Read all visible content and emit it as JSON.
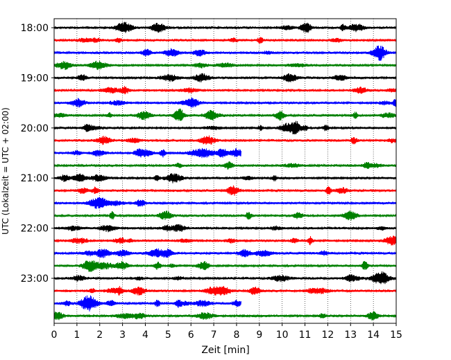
{
  "chart_data": {
    "type": "line",
    "title": "",
    "xlabel": "Zeit  [min]",
    "ylabel": "UTC (Lokalzeit = UTC + 02:00)",
    "xlim": [
      0,
      15
    ],
    "x_ticks": [
      "0",
      "1",
      "2",
      "3",
      "4",
      "5",
      "6",
      "7",
      "8",
      "9",
      "10",
      "11",
      "12",
      "13",
      "14",
      "15"
    ],
    "y_ticks": [
      "18:00",
      "19:00",
      "20:00",
      "21:00",
      "22:00",
      "23:00"
    ],
    "grid": "vertical dotted",
    "trace_interval_minutes": 15,
    "trace_colors": [
      "#000000",
      "#ff0000",
      "#0000ff",
      "#008000"
    ],
    "traces": [
      {
        "start": "18:00",
        "end_min": 15
      },
      {
        "start": "18:15",
        "end_min": 15
      },
      {
        "start": "18:30",
        "end_min": 15
      },
      {
        "start": "18:45",
        "end_min": 15
      },
      {
        "start": "19:00",
        "end_min": 15
      },
      {
        "start": "19:15",
        "end_min": 15
      },
      {
        "start": "19:30",
        "end_min": 15
      },
      {
        "start": "19:45",
        "end_min": 15
      },
      {
        "start": "20:00",
        "end_min": 15
      },
      {
        "start": "20:15",
        "end_min": 15
      },
      {
        "start": "20:30",
        "end_min": 8.2
      },
      {
        "start": "20:45",
        "end_min": 15
      },
      {
        "start": "21:00",
        "end_min": 15
      },
      {
        "start": "21:15",
        "end_min": 15
      },
      {
        "start": "21:30",
        "end_min": 15
      },
      {
        "start": "21:45",
        "end_min": 15
      },
      {
        "start": "22:00",
        "end_min": 15
      },
      {
        "start": "22:15",
        "end_min": 15
      },
      {
        "start": "22:30",
        "end_min": 15
      },
      {
        "start": "22:45",
        "end_min": 15
      },
      {
        "start": "23:00",
        "end_min": 15
      },
      {
        "start": "23:15",
        "end_min": 15
      },
      {
        "start": "23:30",
        "end_min": 8.2
      },
      {
        "start": "23:45",
        "end_min": 15
      }
    ]
  }
}
